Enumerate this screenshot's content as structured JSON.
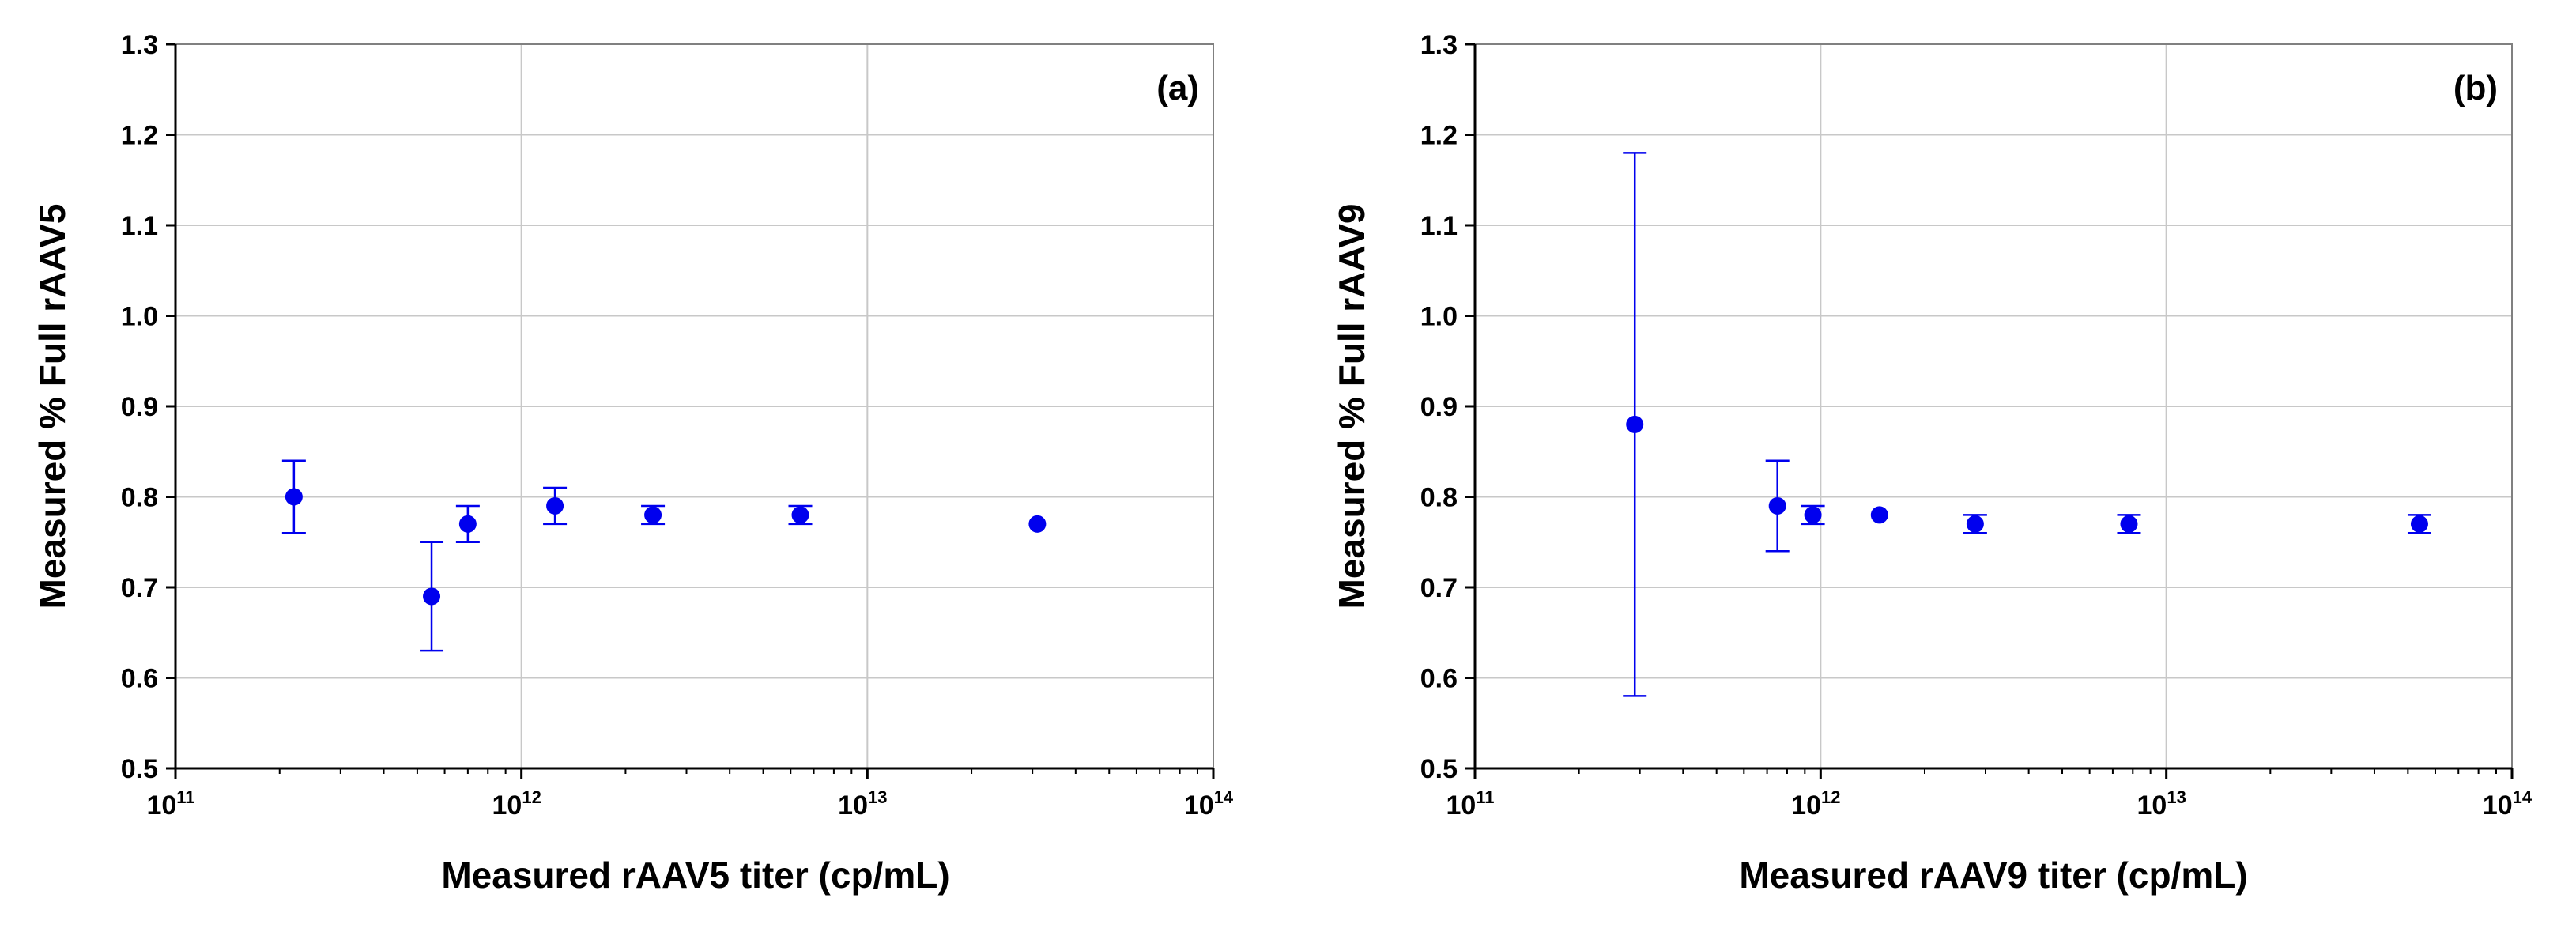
{
  "chart_data": [
    {
      "type": "scatter",
      "panel_label": "(a)",
      "title": "",
      "xlabel": "Measured rAAV5 titer (cp/mL)",
      "ylabel": "Measured % Full rAAV5",
      "xscale": "log",
      "xlim": [
        100000000000.0,
        100000000000000.0
      ],
      "ylim": [
        0.5,
        1.3
      ],
      "x_tick_labels": [
        {
          "base": "10",
          "exp": "11",
          "value": 100000000000.0
        },
        {
          "base": "10",
          "exp": "12",
          "value": 1000000000000.0
        },
        {
          "base": "10",
          "exp": "13",
          "value": 10000000000000.0
        },
        {
          "base": "10",
          "exp": "14",
          "value": 100000000000000.0
        }
      ],
      "y_tick_labels": [
        "0.5",
        "0.6",
        "0.7",
        "0.8",
        "0.9",
        "1.0",
        "1.1",
        "1.2",
        "1.3"
      ],
      "y_tick_values": [
        0.5,
        0.6,
        0.7,
        0.8,
        0.9,
        1.0,
        1.1,
        1.2,
        1.3
      ],
      "grid": true,
      "marker_color": "#0000EE",
      "series": [
        {
          "name": "rAAV5",
          "x": [
            220000000000.0,
            550000000000.0,
            700000000000.0,
            1250000000000.0,
            2400000000000.0,
            6400000000000.0,
            31000000000000.0
          ],
          "y": [
            0.8,
            0.69,
            0.77,
            0.79,
            0.78,
            0.78,
            0.77
          ],
          "error": [
            0.04,
            0.06,
            0.02,
            0.02,
            0.01,
            0.01,
            0.0
          ]
        }
      ]
    },
    {
      "type": "scatter",
      "panel_label": "(b)",
      "title": "",
      "xlabel": "Measured rAAV9 titer (cp/mL)",
      "ylabel": "Measured % Full rAAV9",
      "xscale": "log",
      "xlim": [
        100000000000.0,
        100000000000000.0
      ],
      "ylim": [
        0.5,
        1.3
      ],
      "x_tick_labels": [
        {
          "base": "10",
          "exp": "11",
          "value": 100000000000.0
        },
        {
          "base": "10",
          "exp": "12",
          "value": 1000000000000.0
        },
        {
          "base": "10",
          "exp": "13",
          "value": 10000000000000.0
        },
        {
          "base": "10",
          "exp": "14",
          "value": 100000000000000.0
        }
      ],
      "y_tick_labels": [
        "0.5",
        "0.6",
        "0.7",
        "0.8",
        "0.9",
        "1.0",
        "1.1",
        "1.2",
        "1.3"
      ],
      "y_tick_values": [
        0.5,
        0.6,
        0.7,
        0.8,
        0.9,
        1.0,
        1.1,
        1.2,
        1.3
      ],
      "grid": true,
      "marker_color": "#0000EE",
      "series": [
        {
          "name": "rAAV9",
          "x": [
            290000000000.0,
            750000000000.0,
            950000000000.0,
            1480000000000.0,
            2800000000000.0,
            7800000000000.0,
            54000000000000.0
          ],
          "y": [
            0.88,
            0.79,
            0.78,
            0.78,
            0.77,
            0.77,
            0.77
          ],
          "error": [
            0.3,
            0.05,
            0.01,
            0.0,
            0.01,
            0.01,
            0.01
          ]
        }
      ]
    }
  ]
}
